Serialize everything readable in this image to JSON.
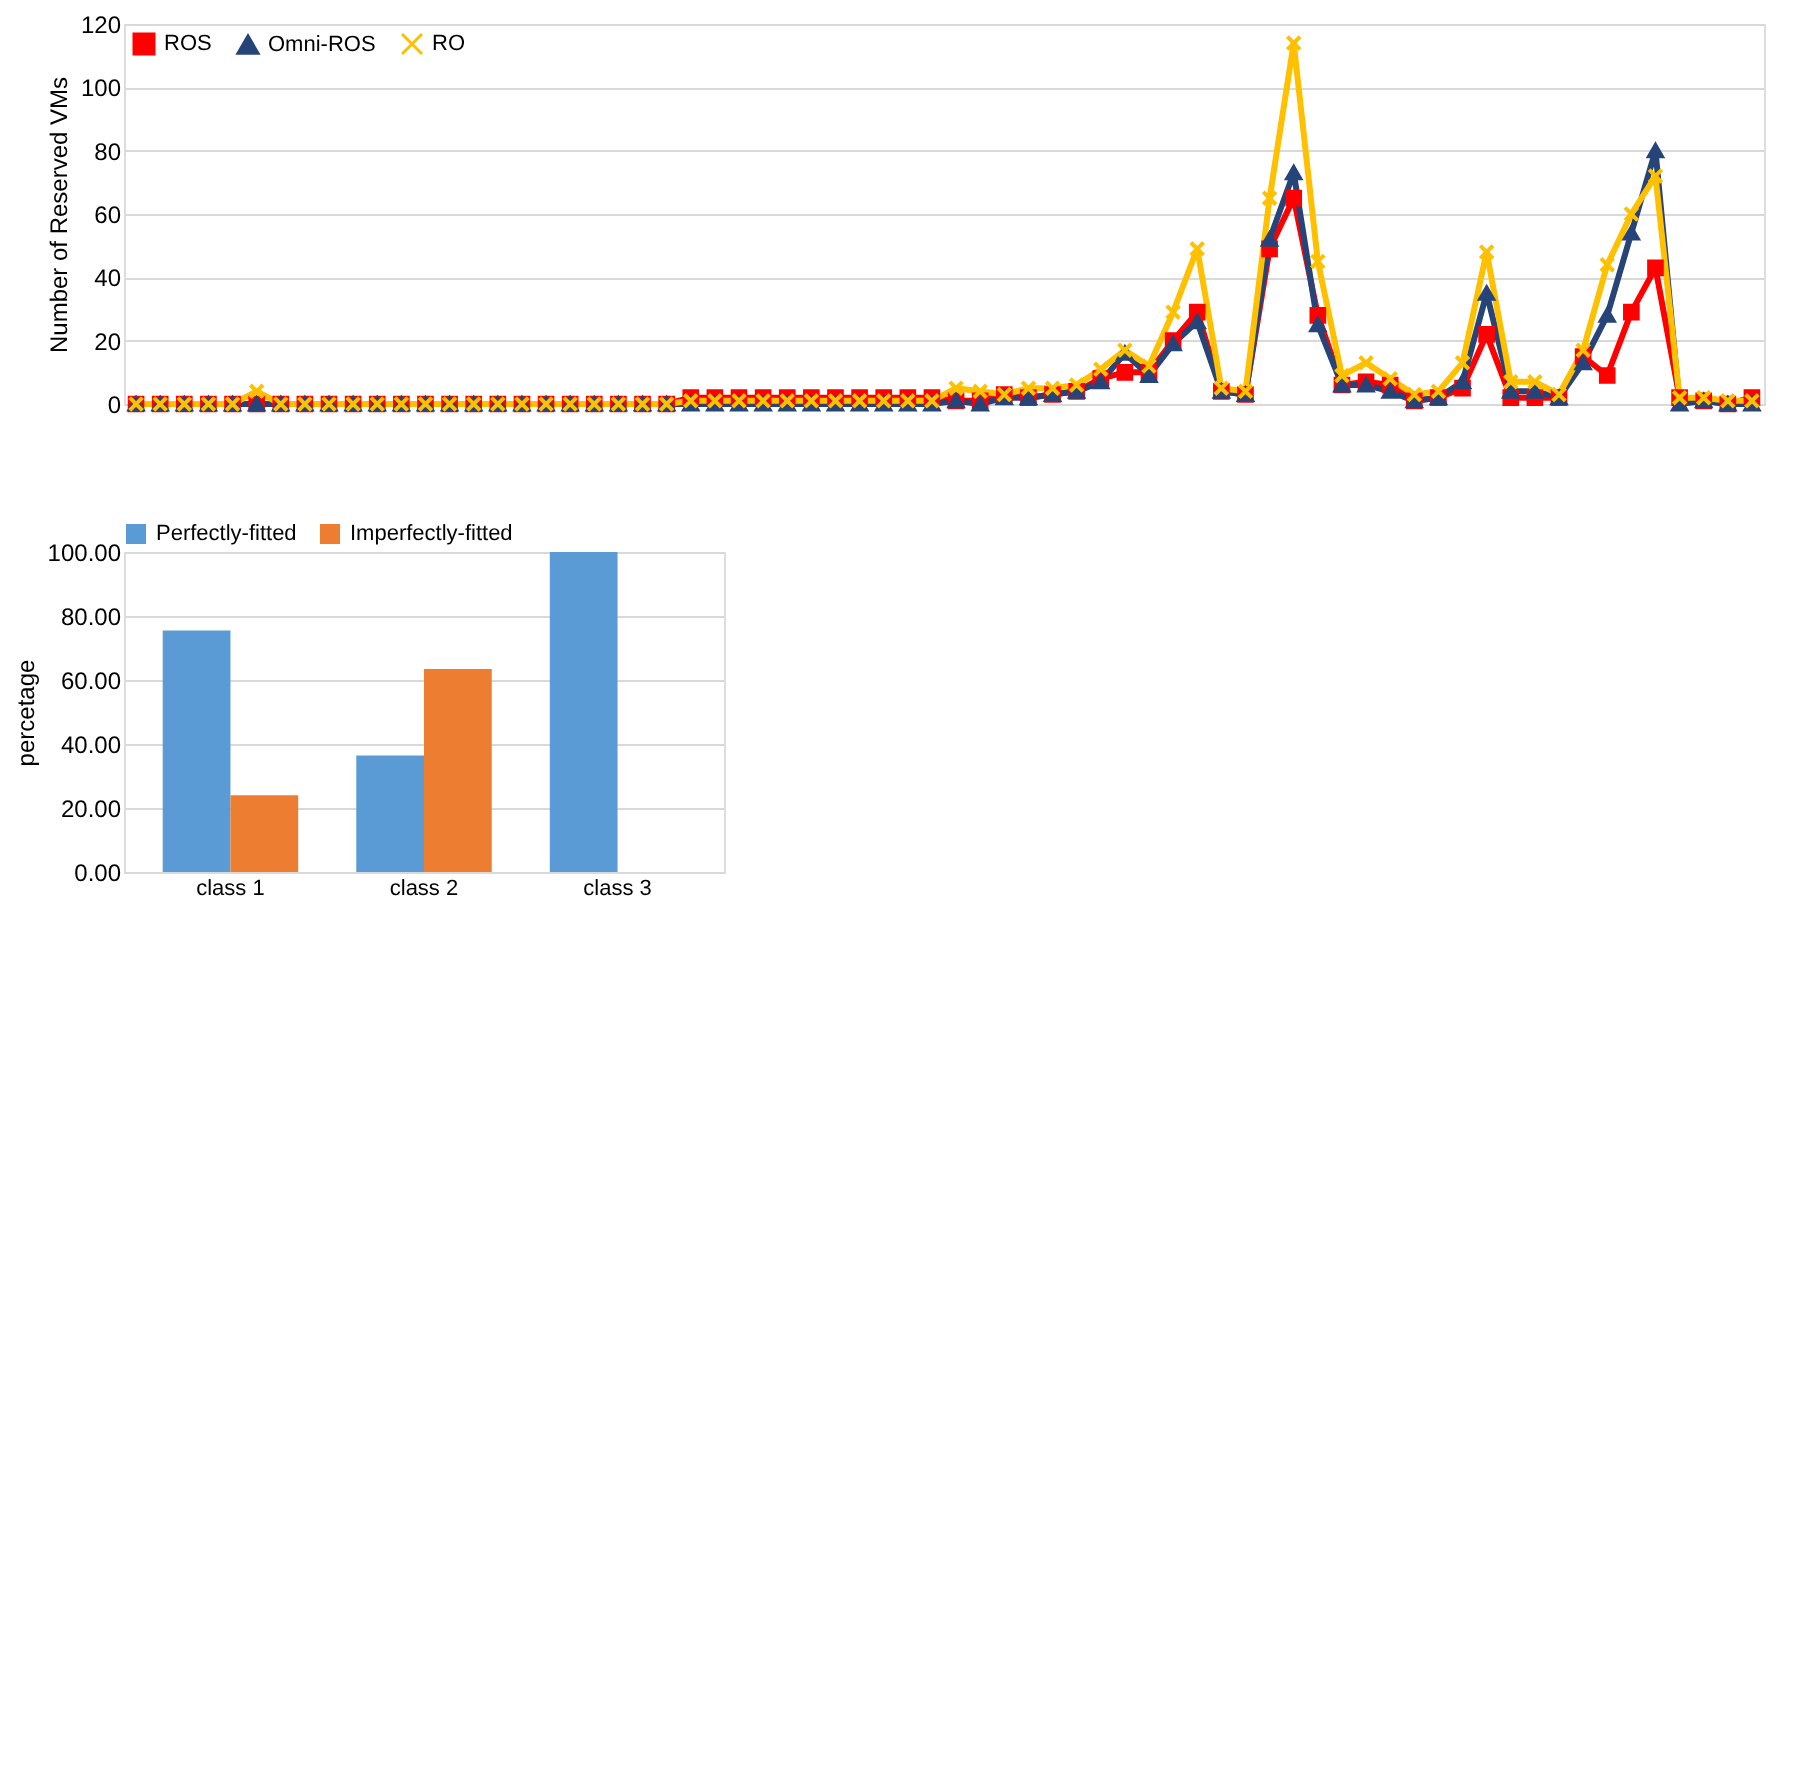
{
  "chart_data": [
    {
      "type": "line",
      "categories": [
        null,
        null,
        null,
        null,
        null,
        null,
        null,
        null,
        null,
        null,
        null,
        null,
        null,
        null,
        null,
        null,
        null,
        null,
        null,
        null,
        null,
        null,
        null,
        null,
        null,
        null,
        null,
        null,
        null,
        null,
        null,
        null,
        null,
        null,
        null,
        null,
        null,
        null,
        null,
        null,
        null,
        null,
        null,
        null,
        null,
        null,
        null,
        null,
        null,
        null,
        null,
        null,
        null,
        null,
        null,
        null,
        null,
        null,
        null,
        null,
        null,
        null,
        null,
        null,
        null,
        null,
        null,
        null
      ],
      "ylabel": "Number of Reserved VMs",
      "ylim": [
        0,
        120
      ],
      "yticks": [
        0,
        20,
        40,
        60,
        80,
        100,
        120
      ],
      "grid": "y",
      "legend": "top left",
      "tick_labels": "y",
      "series": [
        {
          "name": "ROS",
          "color": "#ff0000",
          "marker": "square",
          "values": [
            0,
            0,
            0,
            0,
            0,
            0,
            0,
            0,
            0,
            0,
            0,
            0,
            0,
            0,
            0,
            0,
            0,
            0,
            0,
            0,
            0,
            0,
            0,
            2,
            2,
            2,
            2,
            2,
            2,
            2,
            2,
            2,
            2,
            2,
            1,
            1,
            3,
            2,
            3,
            4,
            8,
            10,
            10,
            20,
            29,
            4,
            3,
            49,
            65,
            28,
            6,
            7,
            6,
            1,
            2,
            5,
            22,
            2,
            2,
            2,
            15,
            9,
            29,
            43,
            2,
            1,
            0,
            2
          ]
        },
        {
          "name": "Omni-ROS",
          "color": "#264478",
          "marker": "triangle",
          "values": [
            0,
            0,
            0,
            0,
            0,
            0,
            0,
            0,
            0,
            0,
            0,
            0,
            0,
            0,
            0,
            0,
            0,
            0,
            0,
            0,
            0,
            0,
            0,
            0,
            0,
            0,
            0,
            0,
            0,
            0,
            0,
            0,
            0,
            0,
            1,
            0,
            2,
            2,
            3,
            4,
            7,
            16,
            9,
            19,
            26,
            4,
            3,
            52,
            73,
            25,
            6,
            6,
            4,
            1,
            2,
            7,
            35,
            4,
            4,
            2,
            13,
            28,
            54,
            80,
            0,
            1,
            0,
            0
          ]
        },
        {
          "name": "RO",
          "color": "#ffc000",
          "marker": "cross",
          "values": [
            0,
            0,
            0,
            0,
            0,
            4,
            0,
            0,
            0,
            0,
            0,
            0,
            0,
            0,
            0,
            0,
            0,
            0,
            0,
            0,
            0,
            0,
            0,
            1,
            1,
            1,
            1,
            1,
            1,
            1,
            1,
            1,
            1,
            1,
            5,
            4,
            3,
            5,
            5,
            6,
            11,
            17,
            12,
            29,
            49,
            5,
            4,
            65,
            114,
            45,
            9,
            13,
            8,
            3,
            4,
            13,
            48,
            7,
            7,
            3,
            17,
            44,
            60,
            72,
            2,
            2,
            1,
            1
          ]
        }
      ]
    },
    {
      "type": "bar",
      "categories": [
        "class 1",
        "class 2",
        "class 3"
      ],
      "ylabel": "percetage",
      "ylim": [
        0,
        100
      ],
      "yticks": [
        {
          "value": 0,
          "label": "0.00"
        },
        {
          "value": 20,
          "label": "20.00"
        },
        {
          "value": 40,
          "label": "40.00"
        },
        {
          "value": 60,
          "label": "60.00"
        },
        {
          "value": 80,
          "label": "80.00"
        },
        {
          "value": 100,
          "label": "100.00"
        }
      ],
      "grid": "y",
      "legend": "top",
      "series": [
        {
          "name": "Perfectly-fitted",
          "color": "#5b9bd5",
          "values": [
            75.5,
            36.4,
            100
          ]
        },
        {
          "name": "Imperfectly-fitted",
          "color": "#ed7d31",
          "values": [
            24.0,
            63.4,
            0
          ]
        }
      ]
    }
  ]
}
